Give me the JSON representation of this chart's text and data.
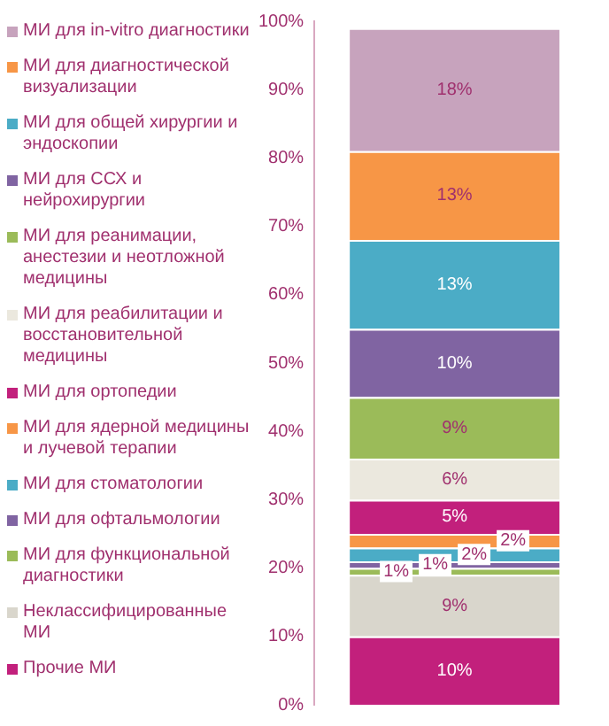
{
  "chart_data": {
    "type": "bar",
    "stacked": true,
    "categories": [
      null
    ],
    "ylim": [
      0,
      100
    ],
    "yticks": [
      {
        "value": 0,
        "label": "0%"
      },
      {
        "value": 10,
        "label": "10%"
      },
      {
        "value": 20,
        "label": "20%"
      },
      {
        "value": 30,
        "label": "30%"
      },
      {
        "value": 40,
        "label": "40%"
      },
      {
        "value": 50,
        "label": "50%"
      },
      {
        "value": 60,
        "label": "60%"
      },
      {
        "value": 70,
        "label": "70%"
      },
      {
        "value": 80,
        "label": "80%"
      },
      {
        "value": 90,
        "label": "90%"
      },
      {
        "value": 100,
        "label": "100%"
      }
    ],
    "grid": false,
    "legend": "left",
    "series": [
      {
        "name": "Прочие МИ",
        "color": "#c2207c",
        "values": [
          10
        ],
        "value_labels": [
          "10%"
        ]
      },
      {
        "name": "Неклассифицированные МИ",
        "color": "#d9d6cc",
        "values": [
          9
        ],
        "value_labels": [
          "9%"
        ]
      },
      {
        "name": "МИ для функциональной диагностики",
        "color": "#9bbb59",
        "values": [
          1
        ],
        "value_labels": [
          "1%"
        ]
      },
      {
        "name": "МИ для офтальмологии",
        "color": "#8064a2",
        "values": [
          1
        ],
        "value_labels": [
          "1%"
        ]
      },
      {
        "name": "МИ для стоматологии",
        "color": "#4bacc6",
        "values": [
          2
        ],
        "value_labels": [
          "2%"
        ]
      },
      {
        "name": "МИ для ядерной медицины и лучевой терапии",
        "color": "#f79646",
        "values": [
          2
        ],
        "value_labels": [
          "2%"
        ]
      },
      {
        "name": "МИ для ортопедии",
        "color": "#c2207c",
        "values": [
          5
        ],
        "value_labels": [
          "5%"
        ]
      },
      {
        "name": "МИ для реабилитации и восстановительной медицины",
        "color": "#ebe8de",
        "values": [
          6
        ],
        "value_labels": [
          "6%"
        ]
      },
      {
        "name": "МИ для реанимации, анестезии и неотложной медицины",
        "color": "#9bbb59",
        "values": [
          9
        ],
        "value_labels": [
          "9%"
        ]
      },
      {
        "name": "МИ для ССХ и нейрохирургии",
        "color": "#8064a2",
        "values": [
          10
        ],
        "value_labels": [
          "10%"
        ]
      },
      {
        "name": "МИ для общей хирургии и эндоскопии",
        "color": "#4bacc6",
        "values": [
          13
        ],
        "value_labels": [
          "13%"
        ]
      },
      {
        "name": "МИ для диагностической визуализации",
        "color": "#f79646",
        "values": [
          13
        ],
        "value_labels": [
          "13%"
        ]
      },
      {
        "name": "МИ для in-vitro диагностики",
        "color": "#c7a3bd",
        "values": [
          18
        ],
        "value_labels": [
          "18%"
        ]
      }
    ]
  }
}
